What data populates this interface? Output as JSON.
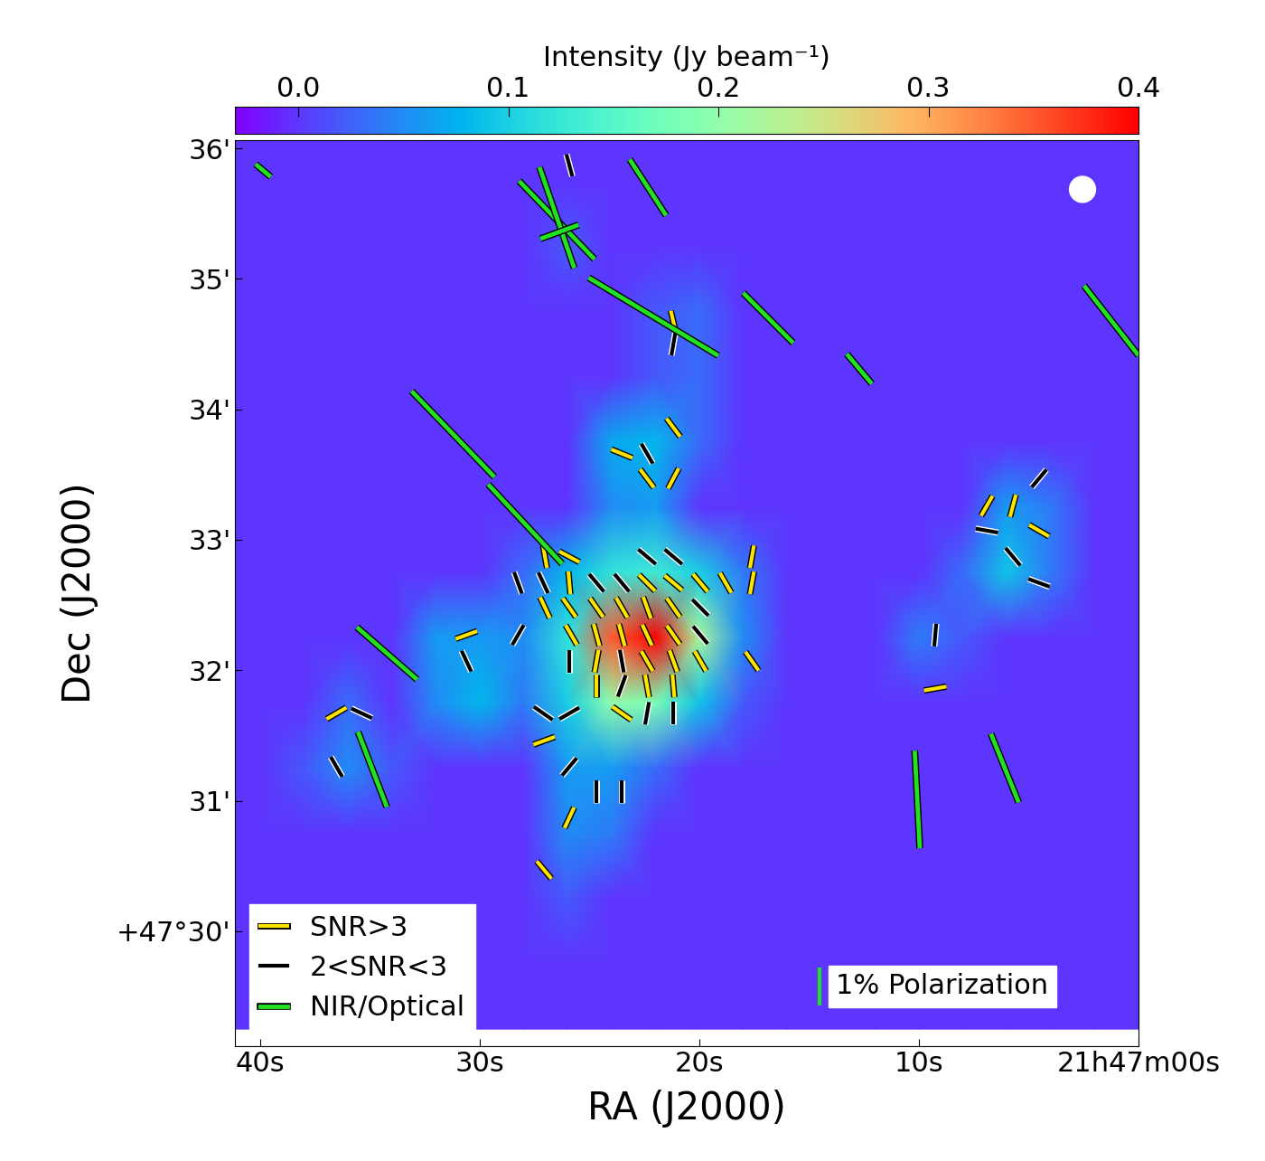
{
  "chart_data": {
    "type": "heatmap",
    "xlabel": "RA (J2000)",
    "ylabel": "Dec (J2000)",
    "xlim": [
      41.15,
      0
    ],
    "ylim": [
      29.12,
      36.06
    ],
    "xticks": [
      {
        "value": 40,
        "label": "40s"
      },
      {
        "value": 30,
        "label": "30s"
      },
      {
        "value": 20,
        "label": "20s"
      },
      {
        "value": 10,
        "label": "10s"
      },
      {
        "value": 0,
        "label": "21h47m00s"
      }
    ],
    "yticks": [
      {
        "value": 30,
        "label": "+47°30'"
      },
      {
        "value": 31,
        "label": "31'"
      },
      {
        "value": 32,
        "label": "32'"
      },
      {
        "value": 33,
        "label": "33'"
      },
      {
        "value": 34,
        "label": "34'"
      },
      {
        "value": 35,
        "label": "35'"
      },
      {
        "value": 36,
        "label": "36'"
      }
    ],
    "color": "rainbow",
    "x": [
      42,
      40,
      38,
      36,
      34,
      32,
      30,
      28,
      26,
      24,
      22,
      20,
      18,
      16,
      14,
      12,
      10,
      8,
      6,
      4,
      2,
      0
    ],
    "y": [
      36.25,
      35.75,
      35.25,
      34.75,
      34.25,
      33.75,
      33.25,
      32.75,
      32.25,
      31.75,
      31.25,
      30.75,
      30.25,
      29.75,
      29.25
    ],
    "cells": [
      [
        0,
        0,
        0,
        0,
        0,
        0,
        0,
        0,
        0,
        0,
        0,
        0,
        0,
        0,
        0,
        0,
        0,
        0,
        0,
        0,
        0,
        0
      ],
      [
        0,
        0,
        0,
        0,
        0,
        0,
        0,
        0,
        0,
        0,
        0,
        0,
        0,
        0,
        0,
        0,
        0,
        0,
        0,
        0,
        0,
        0
      ],
      [
        0,
        0,
        0,
        0,
        0,
        0,
        0,
        0,
        0.02,
        0,
        0,
        0,
        0,
        0,
        0,
        0,
        0,
        0,
        0,
        0,
        0,
        0
      ],
      [
        0,
        0,
        0,
        0,
        0,
        0,
        0,
        0,
        0,
        0,
        0.02,
        0.03,
        0,
        0,
        0,
        0,
        0,
        0,
        0,
        0,
        0,
        0
      ],
      [
        0,
        0,
        0,
        0,
        0,
        0,
        0,
        0,
        0,
        0,
        0.02,
        0.03,
        0,
        0,
        0,
        0,
        0,
        0,
        0,
        0,
        0,
        0
      ],
      [
        0,
        0,
        0,
        0,
        0,
        0,
        0,
        0,
        0,
        0.07,
        0.08,
        0.03,
        0,
        0,
        0,
        0,
        0,
        0,
        0,
        0,
        0,
        0
      ],
      [
        0,
        0,
        0,
        0,
        0,
        0,
        0,
        0,
        0,
        0.05,
        0.06,
        0,
        0,
        0,
        0,
        0,
        0,
        0,
        0.06,
        0.04,
        0,
        0
      ],
      [
        0,
        0,
        0,
        0,
        0,
        0,
        0,
        0.03,
        0.08,
        0.12,
        0.13,
        0.1,
        0.04,
        0,
        0,
        0,
        0,
        0.03,
        0.09,
        0.04,
        0,
        0
      ],
      [
        0,
        0,
        0,
        0,
        0,
        0.06,
        0.06,
        0.05,
        0.12,
        0.35,
        0.4,
        0.22,
        0.05,
        0,
        0,
        0,
        0.04,
        0.02,
        0,
        0,
        0,
        0
      ],
      [
        0,
        0,
        0,
        0.03,
        0,
        0.05,
        0.08,
        0.04,
        0.1,
        0.2,
        0.18,
        0.09,
        0.02,
        0,
        0,
        0,
        0,
        0,
        0,
        0,
        0,
        0
      ],
      [
        0,
        0,
        0.02,
        0.05,
        0.02,
        0,
        0,
        0,
        0.06,
        0.06,
        0.03,
        0,
        0,
        0,
        0,
        0,
        0,
        0,
        0,
        0,
        0,
        0
      ],
      [
        0,
        0,
        0,
        0,
        0,
        0,
        0,
        0,
        0.05,
        0.04,
        0,
        0,
        0,
        0,
        0,
        0,
        0,
        0,
        0,
        0,
        0,
        0
      ],
      [
        0,
        0,
        0,
        0,
        0,
        0,
        0,
        0,
        0.02,
        0,
        0,
        0,
        0,
        0,
        0,
        0,
        0,
        0,
        0,
        0,
        0,
        0
      ],
      [
        0,
        0,
        0,
        0,
        0,
        0,
        0,
        0,
        0,
        0,
        0,
        0,
        0,
        0,
        0,
        0,
        0,
        0,
        0,
        0,
        0,
        0
      ],
      [
        0,
        0,
        0,
        0,
        0,
        0,
        0,
        0,
        0,
        0,
        0,
        0,
        0,
        0,
        0,
        0,
        0,
        0,
        0,
        0,
        0,
        0
      ]
    ],
    "colorbar": {
      "label": "Intensity (Jy beam⁻¹)",
      "range": [
        -0.03,
        0.4
      ],
      "ticks": [
        0.0,
        0.1,
        0.2,
        0.3,
        0.4
      ]
    },
    "legend": "lower left",
    "series": [
      {
        "name": "SNR>3",
        "color": "#ffe400",
        "values": [
          [
            21.19,
            34.67,
            13,
            0.6
          ],
          [
            21.19,
            33.86,
            37,
            0.6
          ],
          [
            23.54,
            33.66,
            68,
            0.6
          ],
          [
            22.39,
            33.47,
            37,
            0.6
          ],
          [
            21.19,
            33.47,
            -28,
            0.6
          ],
          [
            27.04,
            32.87,
            10,
            0.6
          ],
          [
            25.93,
            32.87,
            62,
            0.6
          ],
          [
            17.61,
            32.87,
            -10,
            0.6
          ],
          [
            25.93,
            32.67,
            5,
            0.6
          ],
          [
            22.39,
            32.67,
            45,
            0.6
          ],
          [
            21.19,
            32.67,
            50,
            0.6
          ],
          [
            19.96,
            32.67,
            40,
            0.6
          ],
          [
            18.81,
            32.67,
            30,
            0.6
          ],
          [
            17.61,
            32.67,
            -10,
            0.6
          ],
          [
            27.04,
            32.48,
            25,
            0.6
          ],
          [
            25.93,
            32.48,
            35,
            0.6
          ],
          [
            24.69,
            32.48,
            35,
            0.6
          ],
          [
            23.54,
            32.48,
            30,
            0.6
          ],
          [
            22.39,
            32.48,
            20,
            0.6
          ],
          [
            21.19,
            32.48,
            35,
            0.6
          ],
          [
            30.62,
            32.27,
            -70,
            0.6
          ],
          [
            25.84,
            32.27,
            30,
            0.6
          ],
          [
            24.69,
            32.27,
            15,
            0.6
          ],
          [
            23.54,
            32.27,
            15,
            0.6
          ],
          [
            22.39,
            32.27,
            25,
            0.6
          ],
          [
            21.19,
            32.27,
            35,
            0.6
          ],
          [
            24.69,
            32.07,
            -10,
            0.6
          ],
          [
            22.39,
            32.07,
            30,
            0.6
          ],
          [
            21.19,
            32.07,
            20,
            0.6
          ],
          [
            19.96,
            32.07,
            30,
            0.6
          ],
          [
            17.61,
            32.07,
            35,
            0.6
          ],
          [
            24.69,
            31.88,
            0,
            0.6
          ],
          [
            22.39,
            31.88,
            10,
            0.6
          ],
          [
            21.19,
            31.88,
            5,
            0.6
          ],
          [
            23.54,
            31.67,
            55,
            0.6
          ],
          [
            36.54,
            31.67,
            -60,
            0.6
          ],
          [
            27.08,
            31.46,
            -70,
            0.6
          ],
          [
            25.93,
            30.87,
            -25,
            0.6
          ],
          [
            27.08,
            30.47,
            40,
            0.6
          ],
          [
            6.91,
            33.26,
            -30,
            0.6
          ],
          [
            5.72,
            33.26,
            -15,
            0.6
          ],
          [
            4.53,
            33.07,
            60,
            0.6
          ],
          [
            9.26,
            31.86,
            -80,
            0.6
          ]
        ]
      },
      {
        "name": "2<SNR<3",
        "color": "#000000",
        "values": [
          [
            25.93,
            35.87,
            15,
            0.6
          ],
          [
            21.19,
            34.5,
            -10,
            0.6
          ],
          [
            22.39,
            33.66,
            30,
            0.6
          ],
          [
            22.39,
            32.87,
            50,
            0.6
          ],
          [
            21.19,
            32.87,
            50,
            0.6
          ],
          [
            28.27,
            32.67,
            20,
            0.6
          ],
          [
            27.12,
            32.67,
            25,
            0.6
          ],
          [
            24.69,
            32.67,
            40,
            0.6
          ],
          [
            23.54,
            32.67,
            40,
            0.6
          ],
          [
            19.96,
            32.48,
            45,
            0.6
          ],
          [
            28.27,
            32.27,
            -30,
            0.6
          ],
          [
            19.96,
            32.27,
            40,
            0.6
          ],
          [
            30.62,
            32.07,
            25,
            0.6
          ],
          [
            25.93,
            32.07,
            0,
            0.6
          ],
          [
            23.54,
            32.07,
            10,
            0.6
          ],
          [
            23.54,
            31.88,
            -20,
            0.6
          ],
          [
            27.12,
            31.67,
            55,
            0.6
          ],
          [
            25.93,
            31.67,
            -60,
            0.6
          ],
          [
            22.39,
            31.67,
            -10,
            0.6
          ],
          [
            21.19,
            31.67,
            0,
            0.6
          ],
          [
            35.39,
            31.67,
            65,
            0.6
          ],
          [
            36.54,
            31.26,
            30,
            0.6
          ],
          [
            25.93,
            31.26,
            -40,
            0.6
          ],
          [
            24.69,
            31.07,
            0,
            0.6
          ],
          [
            23.54,
            31.07,
            0,
            0.6
          ],
          [
            4.53,
            33.47,
            -40,
            0.6
          ],
          [
            6.91,
            33.07,
            80,
            0.6
          ],
          [
            5.72,
            32.87,
            40,
            0.6
          ],
          [
            4.53,
            32.67,
            70,
            0.6
          ],
          [
            9.26,
            32.27,
            -5,
            0.6
          ]
        ]
      },
      {
        "name": "NIR/Optical",
        "color": "#22e022",
        "values": [
          [
            39.88,
            35.83,
            50,
            0.52
          ],
          [
            26.5,
            35.45,
            44,
            2.86
          ],
          [
            26.5,
            35.47,
            19,
            2.81
          ],
          [
            26.38,
            35.36,
            -70,
            1.07
          ],
          [
            22.35,
            35.7,
            33,
            1.76
          ],
          [
            22.1,
            34.71,
            59,
            3.98
          ],
          [
            16.87,
            34.7,
            45,
            1.86
          ],
          [
            12.72,
            34.31,
            40,
            1.02
          ],
          [
            1.24,
            34.68,
            38,
            2.33
          ],
          [
            31.23,
            33.81,
            44,
            3.14
          ],
          [
            27.94,
            33.12,
            43,
            2.86
          ],
          [
            34.24,
            32.13,
            49,
            2.1
          ],
          [
            34.9,
            31.24,
            21,
            2.12
          ],
          [
            10.08,
            31.01,
            3,
            2.57
          ],
          [
            6.09,
            31.25,
            22,
            1.95
          ]
        ]
      }
    ],
    "scale_bar": {
      "label": "1% Polarization",
      "value": 1,
      "color": "#22e022"
    },
    "beam_diameter": 0.2
  }
}
